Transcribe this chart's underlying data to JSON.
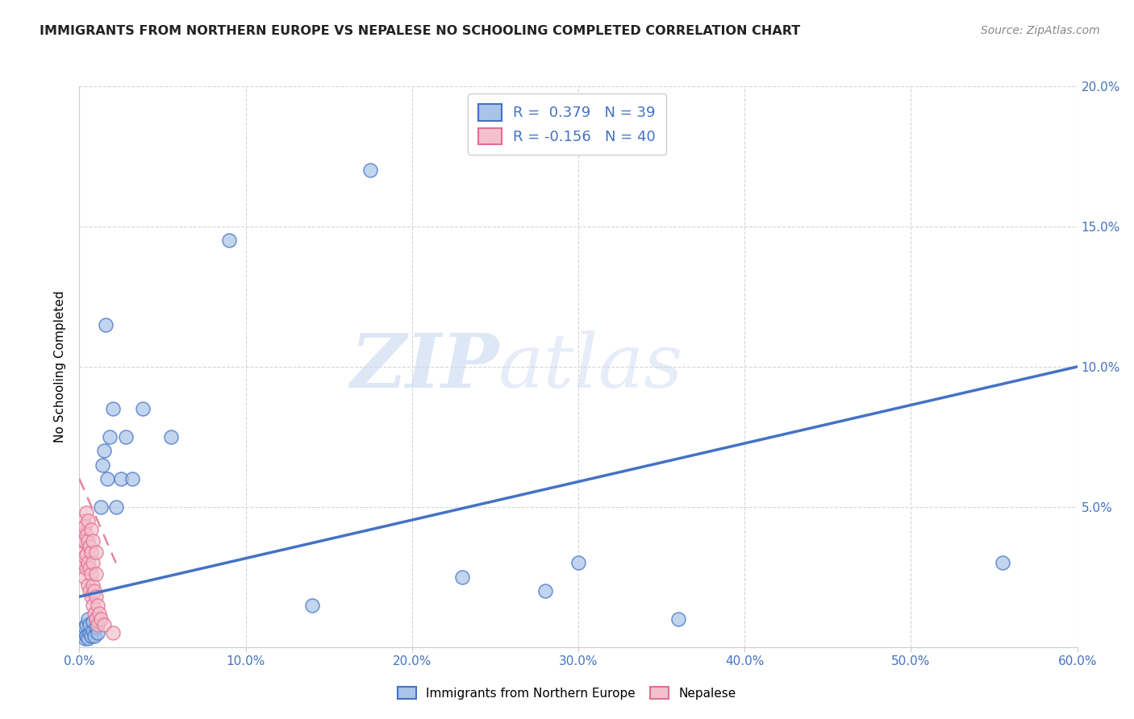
{
  "title": "IMMIGRANTS FROM NORTHERN EUROPE VS NEPALESE NO SCHOOLING COMPLETED CORRELATION CHART",
  "source": "Source: ZipAtlas.com",
  "ylabel": "No Schooling Completed",
  "xlim": [
    0.0,
    0.6
  ],
  "ylim": [
    0.0,
    0.2
  ],
  "xticks": [
    0.0,
    0.1,
    0.2,
    0.3,
    0.4,
    0.5,
    0.6
  ],
  "yticks": [
    0.0,
    0.05,
    0.1,
    0.15,
    0.2
  ],
  "xticklabels": [
    "0.0%",
    "10.0%",
    "20.0%",
    "30.0%",
    "40.0%",
    "50.0%",
    "60.0%"
  ],
  "yticklabels_right": [
    "",
    "5.0%",
    "10.0%",
    "15.0%",
    "20.0%"
  ],
  "blue_color": "#a8c4e8",
  "pink_color": "#f5c0ce",
  "blue_edge_color": "#4472c4",
  "pink_edge_color": "#e07090",
  "blue_line_color": "#4472c4",
  "pink_line_color": "#e07090",
  "watermark_zip": "ZIP",
  "watermark_atlas": "atlas",
  "blue_scatter_x": [
    0.001,
    0.002,
    0.003,
    0.003,
    0.004,
    0.004,
    0.005,
    0.005,
    0.006,
    0.006,
    0.007,
    0.008,
    0.008,
    0.009,
    0.01,
    0.01,
    0.011,
    0.012,
    0.013,
    0.014,
    0.015,
    0.016,
    0.017,
    0.018,
    0.02,
    0.022,
    0.025,
    0.028,
    0.032,
    0.038,
    0.055,
    0.09,
    0.14,
    0.175,
    0.23,
    0.28,
    0.3,
    0.36,
    0.555
  ],
  "blue_scatter_y": [
    0.005,
    0.006,
    0.003,
    0.007,
    0.004,
    0.008,
    0.003,
    0.01,
    0.005,
    0.008,
    0.004,
    0.006,
    0.009,
    0.004,
    0.007,
    0.01,
    0.005,
    0.009,
    0.05,
    0.065,
    0.07,
    0.115,
    0.06,
    0.075,
    0.085,
    0.05,
    0.06,
    0.075,
    0.06,
    0.085,
    0.075,
    0.145,
    0.015,
    0.17,
    0.025,
    0.02,
    0.03,
    0.01,
    0.03
  ],
  "pink_scatter_x": [
    0.001,
    0.001,
    0.002,
    0.002,
    0.002,
    0.003,
    0.003,
    0.003,
    0.003,
    0.004,
    0.004,
    0.004,
    0.004,
    0.005,
    0.005,
    0.005,
    0.005,
    0.006,
    0.006,
    0.006,
    0.007,
    0.007,
    0.007,
    0.007,
    0.008,
    0.008,
    0.008,
    0.008,
    0.009,
    0.009,
    0.01,
    0.01,
    0.01,
    0.01,
    0.011,
    0.011,
    0.012,
    0.013,
    0.015,
    0.02
  ],
  "pink_scatter_y": [
    0.035,
    0.04,
    0.03,
    0.038,
    0.045,
    0.025,
    0.032,
    0.038,
    0.043,
    0.028,
    0.033,
    0.04,
    0.048,
    0.022,
    0.03,
    0.038,
    0.045,
    0.02,
    0.028,
    0.036,
    0.018,
    0.026,
    0.034,
    0.042,
    0.015,
    0.022,
    0.03,
    0.038,
    0.012,
    0.02,
    0.01,
    0.018,
    0.026,
    0.034,
    0.008,
    0.015,
    0.012,
    0.01,
    0.008,
    0.005
  ],
  "blue_line_x": [
    0.0,
    0.6
  ],
  "blue_line_y": [
    0.018,
    0.1
  ],
  "pink_line_x": [
    0.0,
    0.022
  ],
  "pink_line_y": [
    0.06,
    0.03
  ]
}
